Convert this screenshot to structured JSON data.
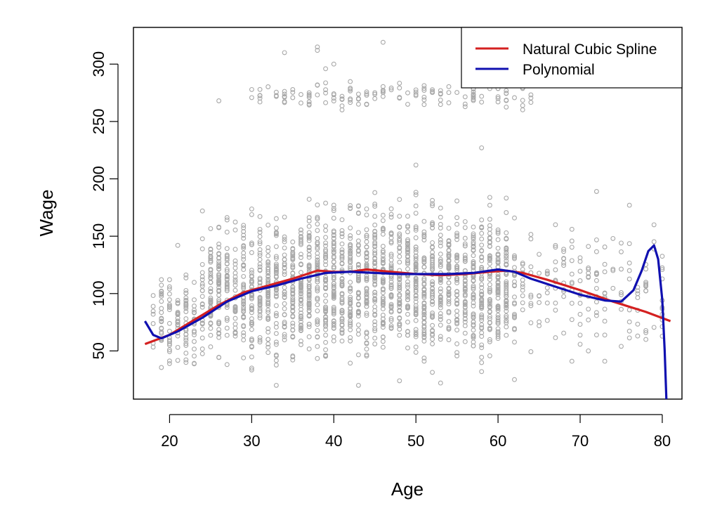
{
  "chart_data": {
    "type": "scatter",
    "title": "",
    "xlabel": "Age",
    "ylabel": "Wage",
    "xlim": [
      15.6,
      82.4
    ],
    "ylim": [
      8.0,
      332.0
    ],
    "x_ticks": [
      20,
      30,
      40,
      50,
      60,
      70,
      80
    ],
    "y_ticks": [
      50,
      100,
      150,
      200,
      250,
      300
    ],
    "grid": false,
    "legend_position": "top-right",
    "point_color": "#a8a8a8",
    "series": [
      {
        "name": "Natural Cubic Spline",
        "type": "line",
        "color": "#d42020",
        "x": [
          17,
          20,
          23,
          26,
          29,
          32,
          35,
          38,
          40,
          42,
          44,
          47,
          50,
          53,
          56,
          59,
          61,
          63,
          66,
          70,
          74,
          78,
          81
        ],
        "y": [
          56,
          64,
          77,
          90,
          101,
          107,
          113,
          120,
          119,
          119,
          121,
          119,
          117,
          116,
          117,
          119,
          120,
          118,
          112,
          103,
          93,
          84,
          76
        ]
      },
      {
        "name": "Polynomial",
        "type": "line",
        "color": "#1010b0",
        "x": [
          17,
          18,
          19,
          21,
          24,
          27,
          30,
          33,
          36,
          39,
          42,
          45,
          48,
          51,
          54,
          57,
          60,
          62,
          64,
          67,
          70,
          73,
          75,
          76.5,
          77.5,
          78.3,
          79,
          79.5,
          80,
          80.3,
          80.5
        ],
        "y": [
          76,
          64,
          61,
          67,
          79,
          93,
          102,
          107,
          113,
          118,
          119,
          118,
          117,
          117,
          117,
          118,
          121,
          119,
          113,
          106,
          99,
          94,
          93,
          103,
          120,
          137,
          142,
          130,
          95,
          50,
          8
        ]
      }
    ],
    "scatter_clusters": [
      {
        "xmin": 18,
        "xmax": 24,
        "ymin": 22,
        "ymax": 130,
        "n": 130
      },
      {
        "xmin": 24,
        "xmax": 36,
        "ymin": 22,
        "ymax": 185,
        "n": 500
      },
      {
        "xmin": 36,
        "xmax": 62,
        "ymin": 20,
        "ymax": 200,
        "n": 1350
      },
      {
        "xmin": 62,
        "xmax": 80,
        "ymin": 35,
        "ymax": 175,
        "n": 160
      },
      {
        "xmin": 30,
        "xmax": 64,
        "ymin": 255,
        "ymax": 290,
        "n": 140
      }
    ],
    "scatter_extra": [
      [
        34,
        310
      ],
      [
        38,
        312
      ],
      [
        38,
        315
      ],
      [
        39,
        296
      ],
      [
        40,
        300
      ],
      [
        46,
        319
      ],
      [
        63,
        319
      ],
      [
        58,
        227
      ],
      [
        50,
        212
      ],
      [
        26,
        268
      ],
      [
        24,
        172
      ],
      [
        21,
        142
      ],
      [
        72,
        189
      ],
      [
        76,
        177
      ],
      [
        74,
        148
      ],
      [
        67,
        160
      ],
      [
        70,
        128
      ],
      [
        73,
        119
      ],
      [
        78,
        60
      ],
      [
        80,
        94
      ],
      [
        80,
        88
      ],
      [
        80,
        82
      ],
      [
        80,
        77
      ],
      [
        77,
        100
      ],
      [
        75,
        54
      ],
      [
        71,
        50
      ],
      [
        73,
        41
      ],
      [
        69,
        41
      ],
      [
        33,
        20
      ],
      [
        43,
        20
      ],
      [
        48,
        24
      ],
      [
        53,
        22
      ],
      [
        62,
        25
      ]
    ]
  }
}
